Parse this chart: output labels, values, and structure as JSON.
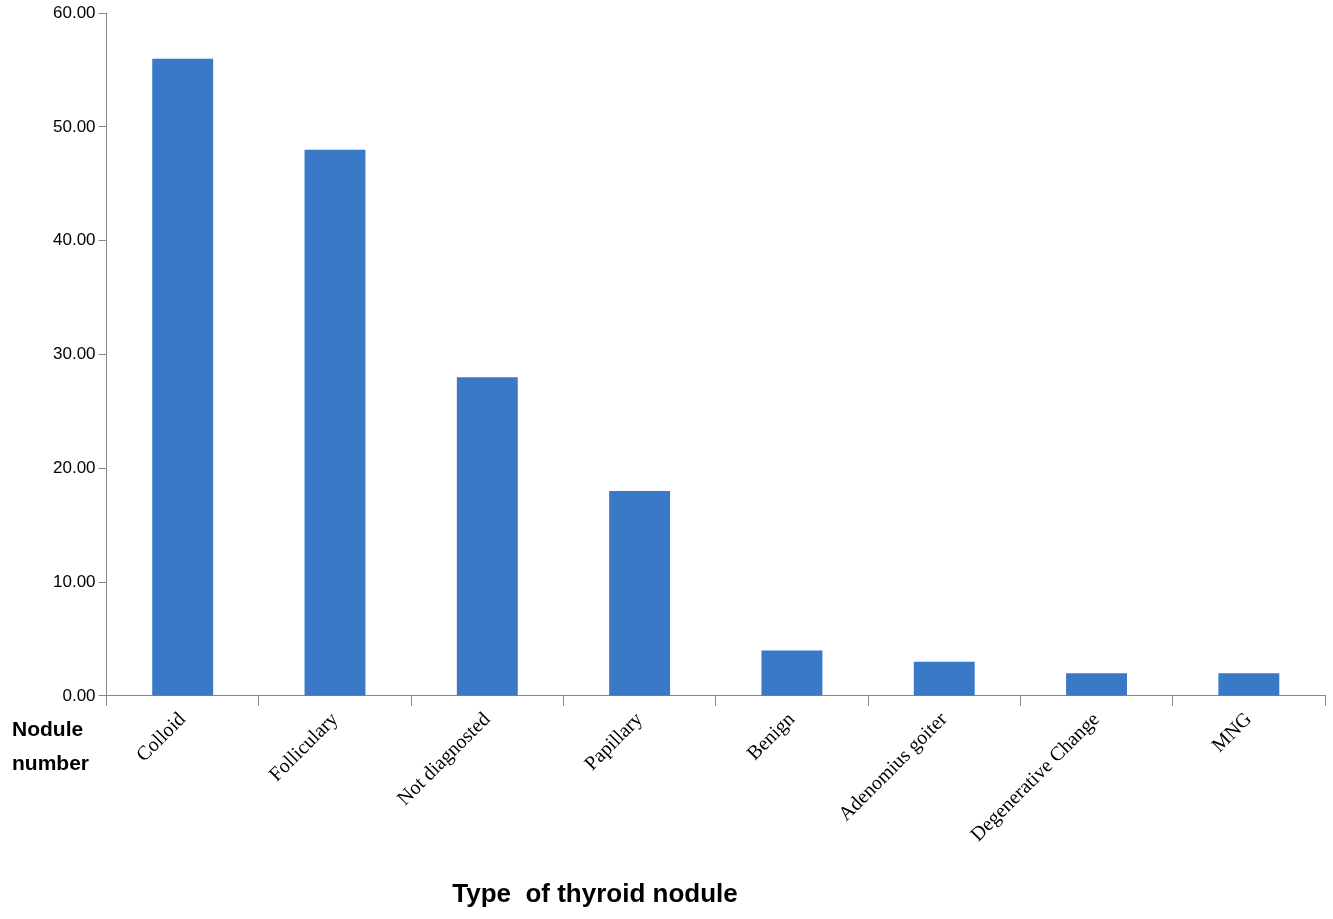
{
  "chart_data": {
    "type": "bar",
    "xlabel": "Type  of thyroid nodule",
    "ylabel": "Nodule number",
    "categories": [
      "Colloid",
      "Folliculary",
      "Not diagnosted",
      "Papillary",
      "Benign",
      "Adenomius goiter",
      "Degenerative Change",
      "MNG"
    ],
    "values": [
      56,
      48,
      28,
      18,
      4,
      3,
      2,
      2
    ],
    "color": "#3a78c8",
    "ylim": [
      0,
      60
    ],
    "yticks": [
      {
        "value": 0,
        "label": "0.00"
      },
      {
        "value": 10,
        "label": "10.00"
      },
      {
        "value": 20,
        "label": "20.00"
      },
      {
        "value": 30,
        "label": "30.00"
      },
      {
        "value": 40,
        "label": "40.00"
      },
      {
        "value": 50,
        "label": "50.00"
      },
      {
        "value": 60,
        "label": "60.00"
      }
    ],
    "grid": false,
    "legend": false
  }
}
